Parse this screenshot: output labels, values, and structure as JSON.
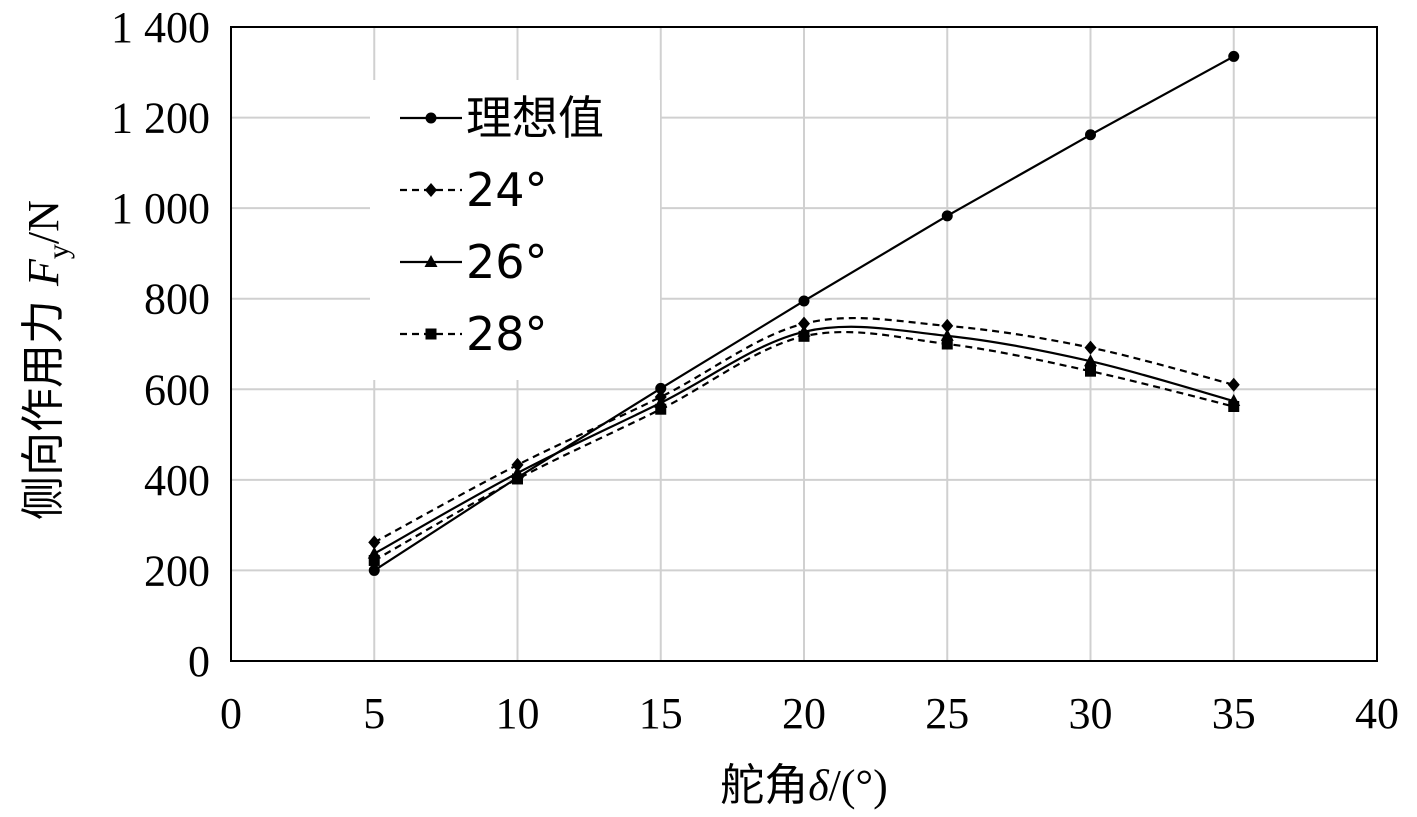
{
  "chart_data": {
    "type": "line",
    "xlabel_parts": [
      "舵角",
      "δ",
      "/(°)"
    ],
    "ylabel_parts": [
      "侧向作用力 ",
      "F",
      "y",
      "/N"
    ],
    "xlim": [
      0,
      40
    ],
    "ylim": [
      0,
      1400
    ],
    "x_ticks": [
      0,
      5,
      10,
      15,
      20,
      25,
      30,
      35,
      40
    ],
    "y_ticks": [
      0,
      200,
      400,
      600,
      800,
      1000,
      1200,
      1400
    ],
    "x_tick_labels": [
      "0",
      "5",
      "10",
      "15",
      "20",
      "25",
      "30",
      "35",
      "40"
    ],
    "y_tick_labels": [
      "0",
      "200",
      "400",
      "600",
      "800",
      "1 000",
      "1 200",
      "1 400"
    ],
    "grid": true,
    "legend_position": "top-left",
    "x": [
      5,
      10,
      15,
      20,
      25,
      30,
      35
    ],
    "series": [
      {
        "name": "理想值",
        "values": [
          200,
          405,
          602,
          795,
          983,
          1162,
          1335
        ],
        "line_style": "solid",
        "marker": "circle",
        "smooth": false
      },
      {
        "name": "24°",
        "values": [
          262,
          433,
          583,
          745,
          740,
          692,
          610
        ],
        "line_style": "dashed",
        "marker": "diamond",
        "smooth": true
      },
      {
        "name": "26°",
        "values": [
          237,
          415,
          570,
          727,
          718,
          662,
          574
        ],
        "line_style": "solid",
        "marker": "triangle",
        "smooth": true
      },
      {
        "name": "28°",
        "values": [
          222,
          402,
          556,
          717,
          700,
          640,
          562
        ],
        "line_style": "dashed",
        "marker": "square",
        "smooth": true
      }
    ]
  }
}
